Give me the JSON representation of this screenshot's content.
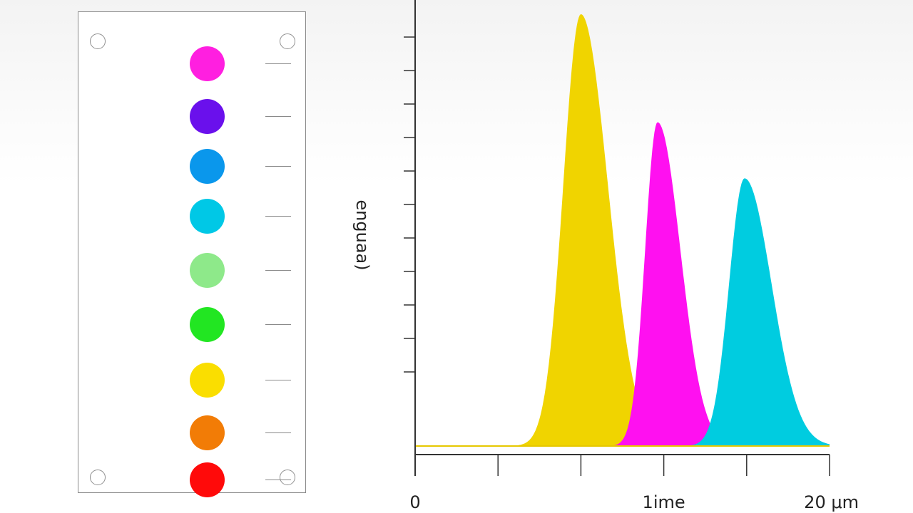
{
  "legend": {
    "swatches": [
      {
        "color": "#ff1fe0"
      },
      {
        "color": "#6a10ec"
      },
      {
        "color": "#0a97ec"
      },
      {
        "color": "#00c8e6"
      },
      {
        "color": "#8ee98a"
      },
      {
        "color": "#22e622"
      },
      {
        "color": "#fade00"
      },
      {
        "color": "#f27c06"
      },
      {
        "color": "#ff0a0a"
      }
    ]
  },
  "chart_data": {
    "type": "area",
    "ylabel": "enguaa)",
    "x_tick_labels": [
      {
        "x": 0,
        "label": "0"
      },
      {
        "x": 12,
        "label": "1ime"
      },
      {
        "x": 20,
        "label": "20 μm"
      }
    ],
    "x_major_ticks": [
      0,
      4,
      8,
      12,
      16,
      20
    ],
    "xlim": [
      0,
      20
    ],
    "ylim": [
      0,
      1
    ],
    "grid": false,
    "series": [
      {
        "color": "#f0d400",
        "peak_x": 8.0,
        "peak_y": 1.0,
        "sigma_left": 0.85,
        "sigma_right": 1.3
      },
      {
        "color": "#ff10f0",
        "peak_x": 11.7,
        "peak_y": 0.75,
        "sigma_left": 0.6,
        "sigma_right": 1.1
      },
      {
        "color": "#00cce0",
        "peak_x": 15.9,
        "peak_y": 0.62,
        "sigma_left": 0.75,
        "sigma_right": 1.3
      }
    ]
  }
}
